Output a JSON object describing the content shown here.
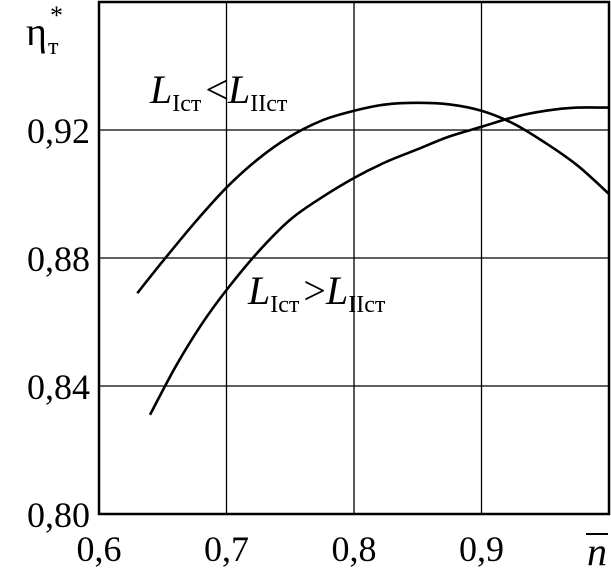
{
  "chart_data": {
    "type": "line",
    "xlabel": "n",
    "ylabel": {
      "symbol": "η",
      "subscript": "т",
      "superscript": "*"
    },
    "xlim": [
      0.6,
      1.0
    ],
    "ylim": [
      0.8,
      0.96
    ],
    "grid": true,
    "x_ticks": [
      0.6,
      0.7,
      0.8,
      0.9
    ],
    "x_tick_labels": [
      "0,6",
      "0,7",
      "0,8",
      "0,9"
    ],
    "y_ticks": [
      0.8,
      0.84,
      0.88,
      0.92
    ],
    "y_tick_labels": [
      "0,80",
      "0,84",
      "0,88",
      "0,92"
    ],
    "series": [
      {
        "name": "L_Iст < L_IIст",
        "label_parts": {
          "a": "L",
          "a_sub": "Iст",
          "op": "<",
          "b": "L",
          "b_sub": "IIст"
        },
        "x": [
          0.63,
          0.65,
          0.675,
          0.7,
          0.725,
          0.75,
          0.775,
          0.8,
          0.825,
          0.85,
          0.875,
          0.9,
          0.925,
          0.95,
          0.975,
          1.0
        ],
        "y": [
          0.869,
          0.879,
          0.891,
          0.902,
          0.911,
          0.918,
          0.923,
          0.926,
          0.928,
          0.9285,
          0.928,
          0.926,
          0.922,
          0.916,
          0.909,
          0.9
        ]
      },
      {
        "name": "L_Iст > L_IIст",
        "label_parts": {
          "a": "L",
          "a_sub": "Iст",
          "op": ">",
          "b": "L",
          "b_sub": "IIст"
        },
        "x": [
          0.64,
          0.66,
          0.68,
          0.7,
          0.725,
          0.75,
          0.775,
          0.8,
          0.825,
          0.85,
          0.875,
          0.9,
          0.925,
          0.95,
          0.975,
          1.0
        ],
        "y": [
          0.831,
          0.846,
          0.859,
          0.87,
          0.882,
          0.892,
          0.899,
          0.905,
          0.91,
          0.914,
          0.918,
          0.921,
          0.924,
          0.926,
          0.927,
          0.927
        ]
      }
    ]
  }
}
